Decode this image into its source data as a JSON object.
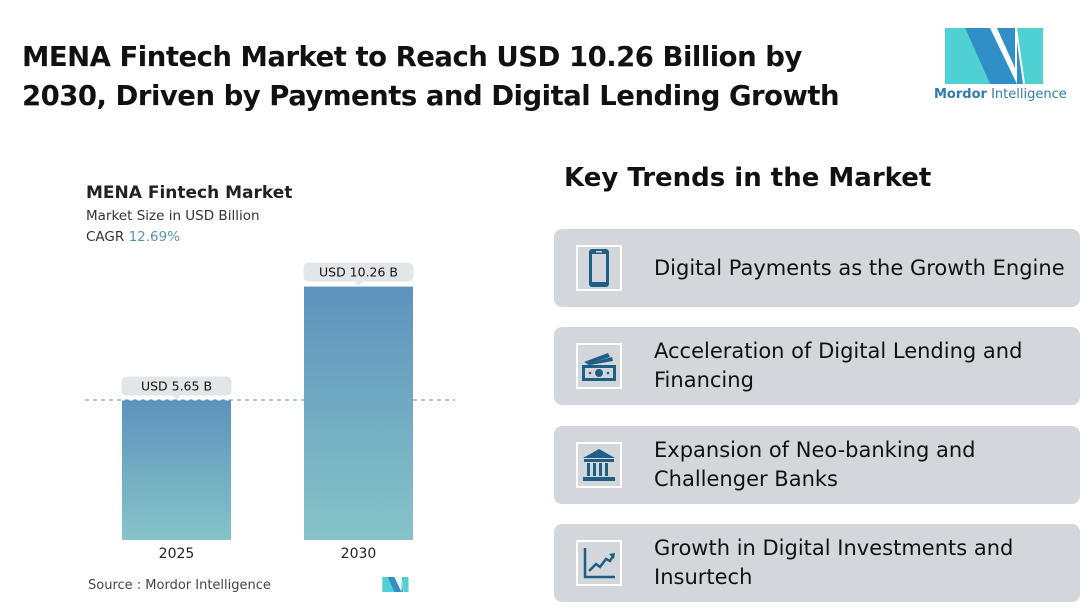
{
  "title": "MENA Fintech Market to Reach USD 10.26 Billion by 2030, Driven by Payments and Digital Lending Growth",
  "logo": {
    "brand": "Mordor",
    "suffix": "Intelligence",
    "colors": [
      "#2f8fc6",
      "#4fd0d3"
    ]
  },
  "chart_data": {
    "type": "bar",
    "title": "MENA Fintech Market",
    "subtitle": "Market Size in USD Billion",
    "cagr_label": "CAGR",
    "cagr_value": "12.69%",
    "categories": [
      "2025",
      "2030"
    ],
    "values": [
      5.65,
      10.26
    ],
    "data_labels": [
      "USD 5.65 B",
      "USD 10.26 B"
    ],
    "ylim": [
      0,
      11
    ],
    "grid": false,
    "bar_colors": {
      "top": "#5d93bd",
      "bottom": "#86c4c8"
    },
    "source": "Source :  Mordor Intelligence"
  },
  "trends": {
    "title": "Key Trends in the Market",
    "items": [
      {
        "icon": "smartphone-icon",
        "label": "Digital Payments as the Growth Engine"
      },
      {
        "icon": "cash-icon",
        "label": "Acceleration of Digital Lending and Financing"
      },
      {
        "icon": "bank-icon",
        "label": "Expansion of Neo-banking and Challenger Banks"
      },
      {
        "icon": "growth-chart-icon",
        "label": "Growth in Digital Investments and Insurtech"
      }
    ]
  }
}
